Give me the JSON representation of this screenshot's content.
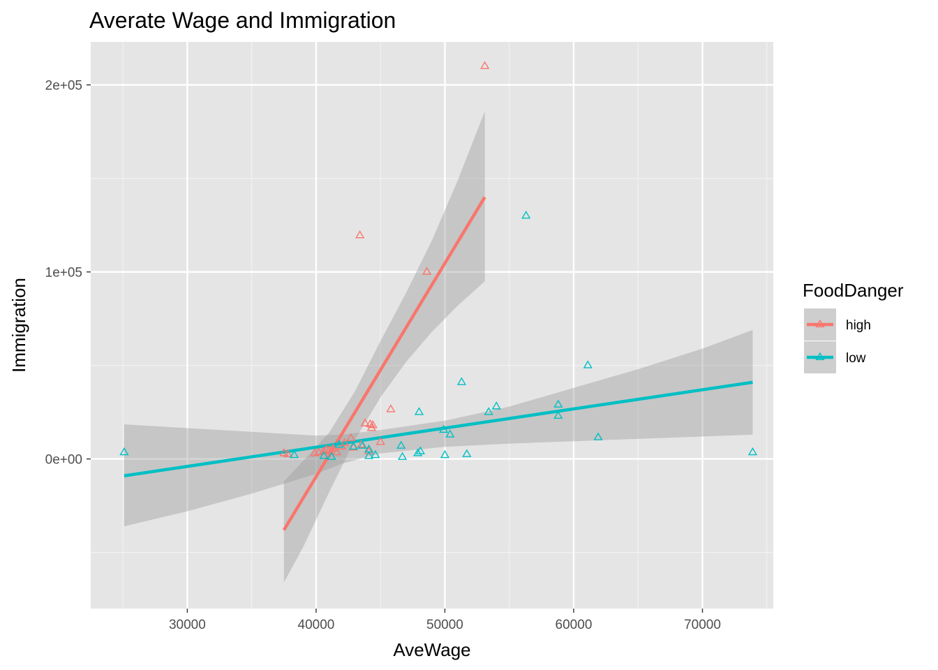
{
  "chart_data": {
    "type": "scatter",
    "title": "Averate Wage and Immigration",
    "xlabel": "AveWage",
    "ylabel": "Immigration",
    "xlim": [
      22500,
      75500
    ],
    "ylim": [
      -80000,
      223000
    ],
    "x_ticks": [
      {
        "value": 30000,
        "label": "30000"
      },
      {
        "value": 40000,
        "label": "40000"
      },
      {
        "value": 50000,
        "label": "50000"
      },
      {
        "value": 60000,
        "label": "60000"
      },
      {
        "value": 70000,
        "label": "70000"
      }
    ],
    "y_ticks": [
      {
        "value": 0,
        "label": "0e+00"
      },
      {
        "value": 100000,
        "label": "1e+05"
      },
      {
        "value": 200000,
        "label": "2e+05"
      }
    ],
    "grid": true,
    "legend": {
      "title": "FoodDanger",
      "placement": "right"
    },
    "series": [
      {
        "name": "high",
        "color": "#f8766d",
        "marker": "triangle-open",
        "points": [
          [
            53100,
            210000
          ],
          [
            43400,
            119500
          ],
          [
            48600,
            100000
          ],
          [
            45800,
            26500
          ],
          [
            43800,
            19000
          ],
          [
            44200,
            18500
          ],
          [
            44400,
            18000
          ],
          [
            44300,
            16500
          ],
          [
            45000,
            9000
          ],
          [
            42700,
            11000
          ],
          [
            42200,
            8500
          ],
          [
            43500,
            7500
          ],
          [
            42000,
            6500
          ],
          [
            41300,
            5500
          ],
          [
            41000,
            4500
          ],
          [
            40600,
            4000
          ],
          [
            40200,
            3500
          ],
          [
            39900,
            3000
          ],
          [
            37500,
            3000
          ],
          [
            37800,
            2500
          ],
          [
            42900,
            6000
          ],
          [
            41600,
            3500
          ],
          [
            44100,
            4000
          ],
          [
            40800,
            5000
          ]
        ],
        "trend": {
          "x": [
            37500,
            53100
          ],
          "y": [
            -38000,
            140000
          ]
        },
        "ci": {
          "x": [
            37500,
            39000,
            41000,
            43000,
            45000,
            47000,
            49000,
            51000,
            53100
          ],
          "lower": [
            -66000,
            -47000,
            -18000,
            10000,
            33000,
            52000,
            68000,
            82000,
            95000
          ],
          "upper": [
            -12000,
            -1000,
            14000,
            36000,
            63000,
            89000,
            117000,
            149000,
            186000
          ]
        }
      },
      {
        "name": "low",
        "color": "#00bfc4",
        "marker": "triangle-open",
        "points": [
          [
            56300,
            130000
          ],
          [
            61100,
            50000
          ],
          [
            51300,
            41000
          ],
          [
            54000,
            28000
          ],
          [
            58800,
            29000
          ],
          [
            53400,
            25000
          ],
          [
            48000,
            25000
          ],
          [
            58800,
            23000
          ],
          [
            61900,
            11500
          ],
          [
            49900,
            15500
          ],
          [
            50400,
            13000
          ],
          [
            46600,
            7000
          ],
          [
            48100,
            4000
          ],
          [
            47900,
            3000
          ],
          [
            50000,
            2000
          ],
          [
            51700,
            2500
          ],
          [
            46700,
            1000
          ],
          [
            73900,
            3500
          ],
          [
            25100,
            3500
          ],
          [
            38300,
            2000
          ],
          [
            40600,
            1500
          ],
          [
            41200,
            1000
          ],
          [
            41800,
            7500
          ],
          [
            43600,
            7000
          ],
          [
            44100,
            5000
          ],
          [
            44600,
            2000
          ],
          [
            44100,
            1500
          ],
          [
            42900,
            6500
          ]
        ],
        "trend": {
          "x": [
            25100,
            73900
          ],
          "y": [
            -9000,
            41000
          ]
        },
        "ci": {
          "x": [
            25100,
            30000,
            35000,
            40000,
            42000,
            45000,
            50000,
            55000,
            60000,
            65000,
            70000,
            73900
          ],
          "lower": [
            -36000,
            -28000,
            -18500,
            -8000,
            -2500,
            3000,
            6500,
            8200,
            9500,
            10800,
            12000,
            13000
          ],
          "upper": [
            18500,
            16500,
            14500,
            12500,
            13000,
            15500,
            20500,
            28000,
            38000,
            48000,
            59000,
            69000
          ]
        }
      }
    ]
  }
}
